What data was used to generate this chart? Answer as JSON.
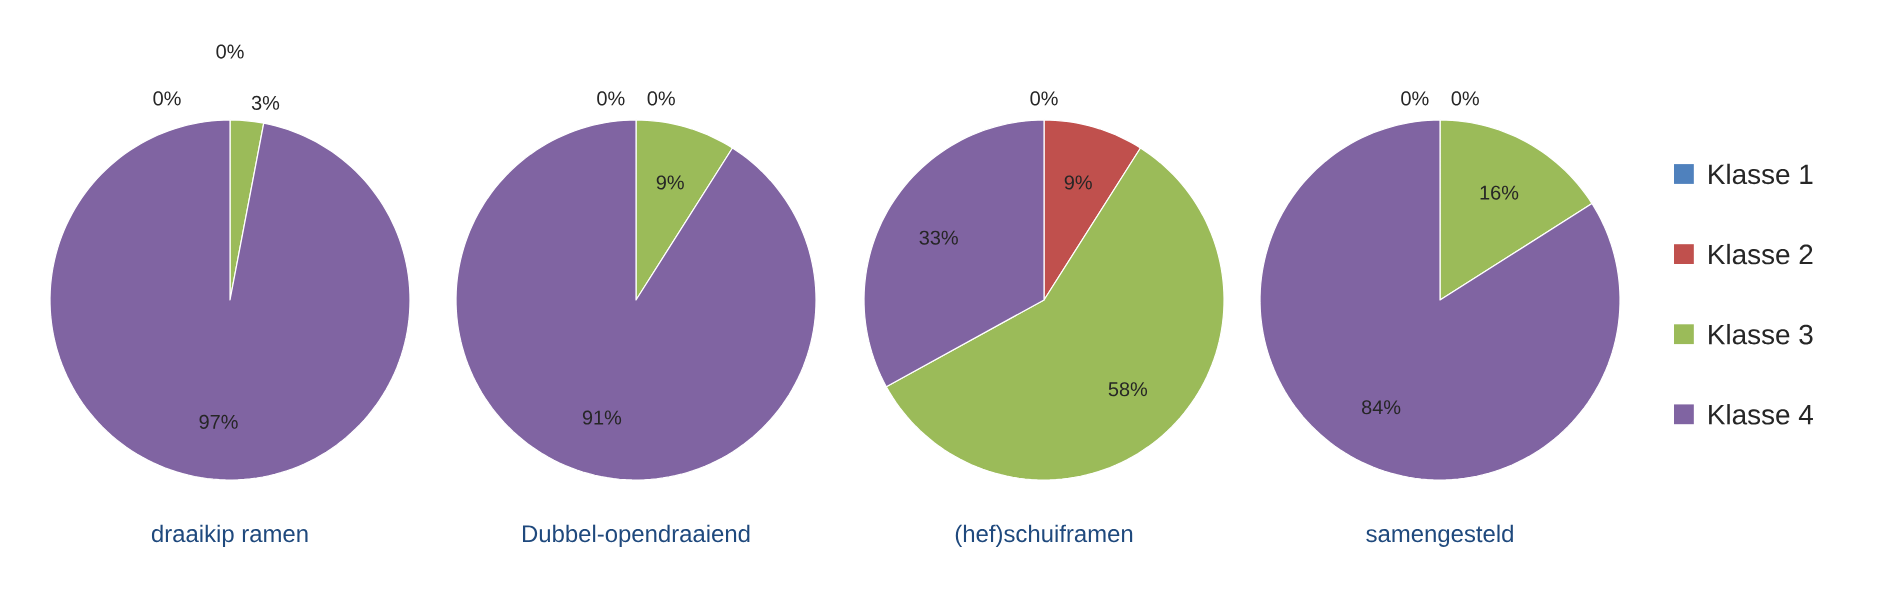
{
  "chart_data": [
    {
      "type": "pie",
      "title": "draaikip ramen",
      "categories": [
        null,
        null,
        null,
        null
      ],
      "values": [
        0,
        0,
        3,
        97
      ],
      "value_labels": [
        "0%",
        "0%",
        "3%",
        "97%"
      ],
      "colors": [
        "#4f81bd",
        "#c0504d",
        "#9bbb59",
        "#8064a2"
      ]
    },
    {
      "type": "pie",
      "title": "Dubbel-opendraaiend",
      "categories": [
        null,
        null,
        null,
        null
      ],
      "values": [
        0,
        0,
        9,
        91
      ],
      "value_labels": [
        "0%",
        "0%",
        "9%",
        "91%"
      ],
      "colors": [
        "#4f81bd",
        "#c0504d",
        "#9bbb59",
        "#8064a2"
      ]
    },
    {
      "type": "pie",
      "title": "(hef)schuiframen",
      "categories": [
        null,
        null,
        null,
        null
      ],
      "values": [
        0,
        9,
        58,
        33
      ],
      "value_labels": [
        "0%",
        "9%",
        "58%",
        "33%"
      ],
      "colors": [
        "#4f81bd",
        "#c0504d",
        "#9bbb59",
        "#8064a2"
      ]
    },
    {
      "type": "pie",
      "title": "samengesteld",
      "categories": [
        "Klasse 1",
        "Klasse 2",
        "Klasse 3",
        "Klasse 4"
      ],
      "values": [
        0,
        0,
        16,
        84
      ],
      "value_labels": [
        "0%",
        "0%",
        "16%",
        "84%"
      ],
      "colors": [
        "#4f81bd",
        "#c0504d",
        "#9bbb59",
        "#8064a2"
      ],
      "legend": "right"
    }
  ]
}
